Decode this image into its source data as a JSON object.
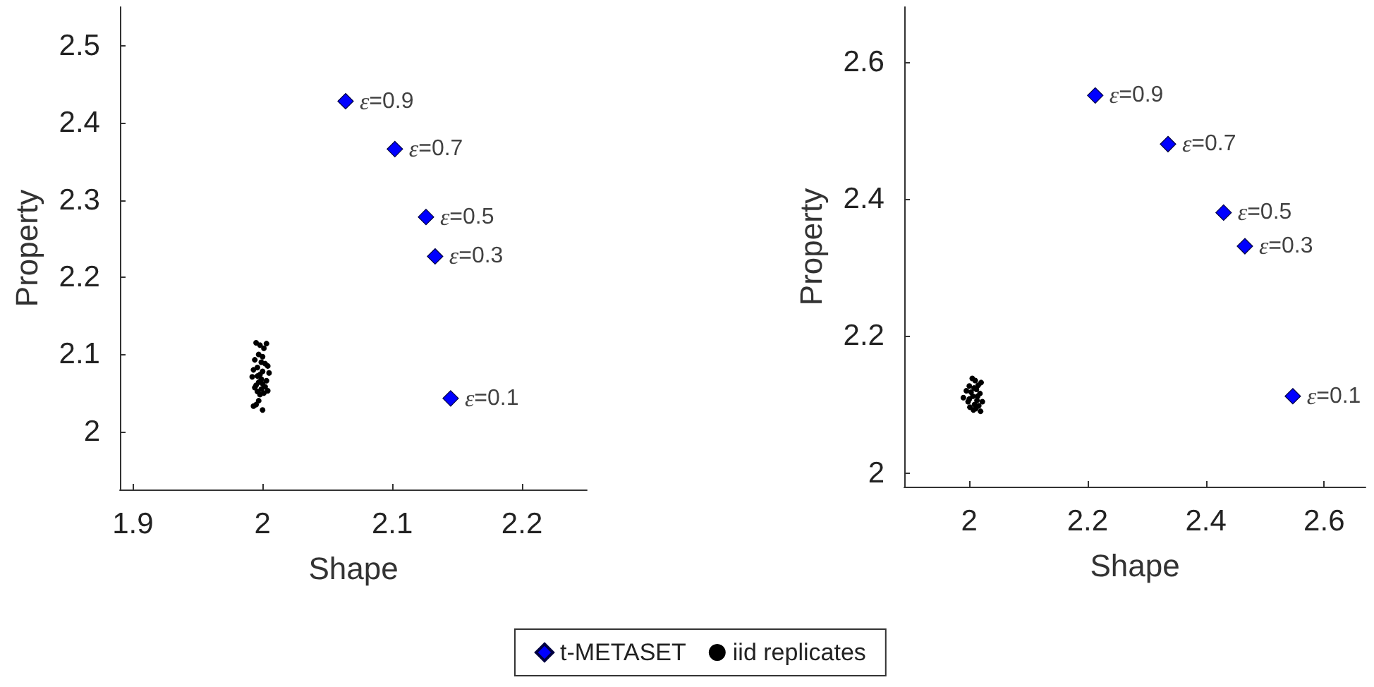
{
  "chart_data": [
    {
      "type": "scatter",
      "xlabel": "Shape",
      "ylabel": "Property",
      "xlim": [
        1.89,
        2.25
      ],
      "xticks": [
        1.9,
        2,
        2.1,
        2.2
      ],
      "ylim": [
        1.925,
        2.55
      ],
      "yticks": [
        2,
        2.1,
        2.2,
        2.3,
        2.4,
        2.5
      ],
      "grid": false,
      "legend": "bottom",
      "series": [
        {
          "name": "t-METASET",
          "color": "#0000ff",
          "marker": "diamond",
          "x": [
            2.064,
            2.102,
            2.126,
            2.133,
            2.145
          ],
          "values": [
            2.428,
            2.366,
            2.278,
            2.227,
            2.043
          ]
        },
        {
          "name": "iid replicates",
          "color": "#000000",
          "marker": "circle",
          "x": [
            1.995,
            1.998,
            2.001,
            2.003,
            1.997,
            2.0,
            1.994,
            1.999,
            2.002,
            2.004,
            1.996,
            1.993,
            2.0,
            2.005,
            1.998,
            1.996,
            1.992,
            1.999,
            2.003,
            1.997,
            2.0,
            1.995,
            2.002,
            1.999,
            1.994,
            1.996,
            2.001,
            2.004,
            1.998,
            1.997,
            1.995,
            2.0,
            1.993
          ],
          "values": [
            2.115,
            2.112,
            2.108,
            2.114,
            2.1,
            2.097,
            2.093,
            2.09,
            2.088,
            2.085,
            2.083,
            2.08,
            2.078,
            2.076,
            2.074,
            2.072,
            2.071,
            2.068,
            2.066,
            2.064,
            2.062,
            2.06,
            2.058,
            2.055,
            2.057,
            2.052,
            2.05,
            2.053,
            2.048,
            2.04,
            2.035,
            2.028,
            2.033
          ]
        }
      ],
      "annotations": [
        {
          "text": "ε=0.9",
          "x": 2.064,
          "y": 2.428
        },
        {
          "text": "ε=0.7",
          "x": 2.102,
          "y": 2.366
        },
        {
          "text": "ε=0.5",
          "x": 2.126,
          "y": 2.278
        },
        {
          "text": "ε=0.3",
          "x": 2.133,
          "y": 2.227
        },
        {
          "text": "ε=0.1",
          "x": 2.145,
          "y": 2.043
        }
      ]
    },
    {
      "type": "scatter",
      "xlabel": "Shape",
      "ylabel": "Property",
      "xlim": [
        1.89,
        2.67
      ],
      "xticks": [
        2,
        2.2,
        2.4,
        2.6
      ],
      "ylim": [
        1.98,
        2.68
      ],
      "yticks": [
        2,
        2.2,
        2.4,
        2.6
      ],
      "grid": false,
      "series": [
        {
          "color": "#0000ff",
          "marker": "diamond",
          "x": [
            2.213,
            2.336,
            2.43,
            2.466,
            2.547
          ],
          "values": [
            2.551,
            2.48,
            2.38,
            2.331,
            2.112
          ]
        },
        {
          "color": "#000000",
          "marker": "circle",
          "x": [
            2.005,
            2.01,
            2.02,
            2.015,
            2.0,
            2.008,
            2.012,
            1.995,
            2.003,
            2.018,
            2.006,
            1.99,
            2.0,
            2.013,
            2.022,
            2.009,
            2.016,
            2.001,
            2.011,
            2.007,
            2.019,
            1.998,
            2.014
          ],
          "values": [
            2.138,
            2.135,
            2.132,
            2.128,
            2.127,
            2.124,
            2.122,
            2.12,
            2.118,
            2.116,
            2.112,
            2.11,
            2.108,
            2.106,
            2.104,
            2.1,
            2.098,
            2.096,
            2.094,
            2.092,
            2.09,
            2.104,
            2.112
          ]
        }
      ],
      "annotations": [
        {
          "text": "ε=0.9",
          "x": 2.213,
          "y": 2.551
        },
        {
          "text": "ε=0.7",
          "x": 2.336,
          "y": 2.48
        },
        {
          "text": "ε=0.5",
          "x": 2.43,
          "y": 2.38
        },
        {
          "text": "ε=0.3",
          "x": 2.466,
          "y": 2.331
        },
        {
          "text": "ε=0.1",
          "x": 2.547,
          "y": 2.112
        }
      ]
    }
  ]
}
